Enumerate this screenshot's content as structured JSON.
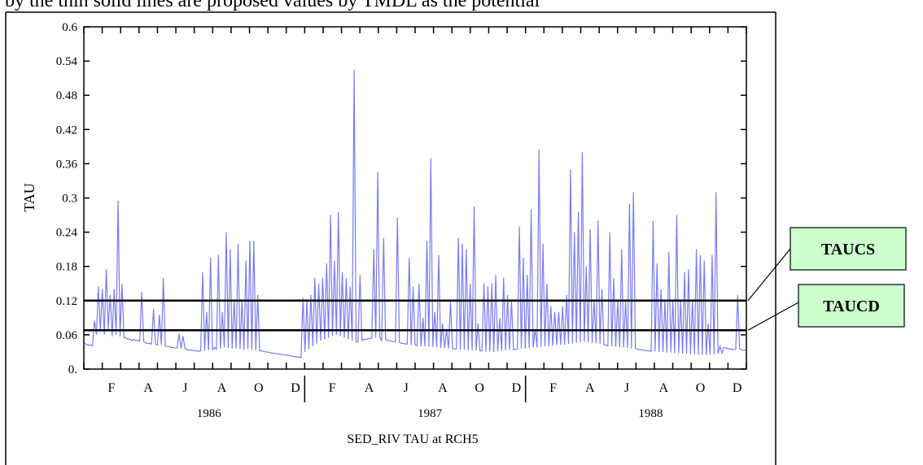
{
  "header_text": "by the thin solid lines are proposed values by TMDL as the potential",
  "chart_data": {
    "type": "line",
    "title": "",
    "xlabel": "SED_RIV TAU at RCH5",
    "ylabel": "TAU",
    "ylim": [
      0,
      0.6
    ],
    "grid": false,
    "y_ticks": [
      0,
      0.06,
      0.12,
      0.18,
      0.24,
      0.3,
      0.36,
      0.42,
      0.48,
      0.54,
      0.6
    ],
    "y_tick_labels": [
      "0.",
      "0.06",
      "0.12",
      "0.18",
      "0.24",
      "0.3",
      "0.36",
      "0.42",
      "0.48",
      "0.54",
      "0.6"
    ],
    "x_month_labels": [
      "F",
      "A",
      "J",
      "A",
      "O",
      "D",
      "F",
      "A",
      "J",
      "A",
      "O",
      "D",
      "F",
      "A",
      "J",
      "A",
      "O",
      "D"
    ],
    "x_year_labels": [
      "1986",
      "1987",
      "1988"
    ],
    "series_color": "#7b7bef",
    "series": [
      {
        "values": [
          0.045,
          0.043,
          0.042,
          0.042,
          0.041,
          0.085,
          0.06,
          0.145,
          0.065,
          0.14,
          0.06,
          0.175,
          0.07,
          0.13,
          0.058,
          0.14,
          0.06,
          0.295,
          0.057,
          0.15,
          0.055,
          0.055,
          0.052,
          0.053,
          0.05,
          0.052,
          0.05,
          0.051,
          0.049,
          0.135,
          0.048,
          0.046,
          0.045,
          0.045,
          0.044,
          0.105,
          0.044,
          0.042,
          0.095,
          0.042,
          0.16,
          0.04,
          0.04,
          0.039,
          0.038,
          0.038,
          0.037,
          0.037,
          0.062,
          0.036,
          0.058,
          0.036,
          0.034,
          0.034,
          0.033,
          0.033,
          0.032,
          0.032,
          0.031,
          0.032,
          0.17,
          0.032,
          0.1,
          0.033,
          0.195,
          0.034,
          0.038,
          0.035,
          0.2,
          0.036,
          0.1,
          0.038,
          0.24,
          0.037,
          0.21,
          0.036,
          0.12,
          0.036,
          0.22,
          0.035,
          0.12,
          0.034,
          0.19,
          0.035,
          0.225,
          0.034,
          0.225,
          0.033,
          0.13,
          0.032,
          0.032,
          0.031,
          0.03,
          0.03,
          0.029,
          0.028,
          0.028,
          0.027,
          0.027,
          0.026,
          0.026,
          0.025,
          0.025,
          0.024,
          0.024,
          0.023,
          0.022,
          0.022,
          0.021,
          0.021,
          0.02,
          0.125,
          0.03,
          0.12,
          0.035,
          0.13,
          0.04,
          0.16,
          0.045,
          0.15,
          0.05,
          0.16,
          0.052,
          0.185,
          0.055,
          0.27,
          0.058,
          0.19,
          0.06,
          0.275,
          0.058,
          0.17,
          0.055,
          0.16,
          0.052,
          0.145,
          0.05,
          0.525,
          0.048,
          0.048,
          0.165,
          0.05,
          0.052,
          0.052,
          0.053,
          0.054,
          0.054,
          0.21,
          0.055,
          0.345,
          0.056,
          0.05,
          0.23,
          0.052,
          0.05,
          0.05,
          0.049,
          0.048,
          0.048,
          0.265,
          0.047,
          0.045,
          0.045,
          0.044,
          0.044,
          0.195,
          0.042,
          0.145,
          0.042,
          0.041,
          0.15,
          0.04,
          0.09,
          0.04,
          0.225,
          0.039,
          0.37,
          0.039,
          0.1,
          0.038,
          0.2,
          0.037,
          0.08,
          0.037,
          0.07,
          0.036,
          0.12,
          0.036,
          0.035,
          0.035,
          0.23,
          0.034,
          0.22,
          0.034,
          0.21,
          0.033,
          0.15,
          0.033,
          0.285,
          0.033,
          0.08,
          0.032,
          0.032,
          0.15,
          0.031,
          0.145,
          0.031,
          0.15,
          0.03,
          0.165,
          0.031,
          0.09,
          0.032,
          0.16,
          0.033,
          0.13,
          0.034,
          0.12,
          0.034,
          0.035,
          0.035,
          0.25,
          0.036,
          0.195,
          0.036,
          0.165,
          0.037,
          0.28,
          0.038,
          0.07,
          0.038,
          0.385,
          0.039,
          0.22,
          0.04,
          0.15,
          0.04,
          0.11,
          0.041,
          0.1,
          0.042,
          0.1,
          0.043,
          0.11,
          0.043,
          0.13,
          0.044,
          0.35,
          0.045,
          0.24,
          0.046,
          0.275,
          0.047,
          0.38,
          0.048,
          0.18,
          0.047,
          0.245,
          0.046,
          0.12,
          0.045,
          0.26,
          0.044,
          0.14,
          0.043,
          0.042,
          0.041,
          0.24,
          0.04,
          0.16,
          0.039,
          0.12,
          0.038,
          0.21,
          0.038,
          0.12,
          0.037,
          0.29,
          0.036,
          0.31,
          0.036,
          0.035,
          0.034,
          0.034,
          0.033,
          0.033,
          0.032,
          0.032,
          0.031,
          0.26,
          0.031,
          0.185,
          0.03,
          0.14,
          0.03,
          0.12,
          0.029,
          0.205,
          0.029,
          0.12,
          0.028,
          0.27,
          0.028,
          0.12,
          0.027,
          0.17,
          0.027,
          0.175,
          0.026,
          0.12,
          0.026,
          0.21,
          0.025,
          0.2,
          0.025,
          0.19,
          0.025,
          0.08,
          0.025,
          0.2,
          0.026,
          0.31,
          0.027,
          0.04,
          0.028,
          0.038,
          0.037,
          0.036,
          0.035,
          0.035,
          0.034,
          0.035,
          0.13,
          0.035,
          0.034,
          0.033,
          0.033
        ]
      }
    ],
    "threshold_lines": [
      {
        "label": "TAUCS",
        "value": 0.12
      },
      {
        "label": "TAUCD",
        "value": 0.068
      }
    ]
  }
}
